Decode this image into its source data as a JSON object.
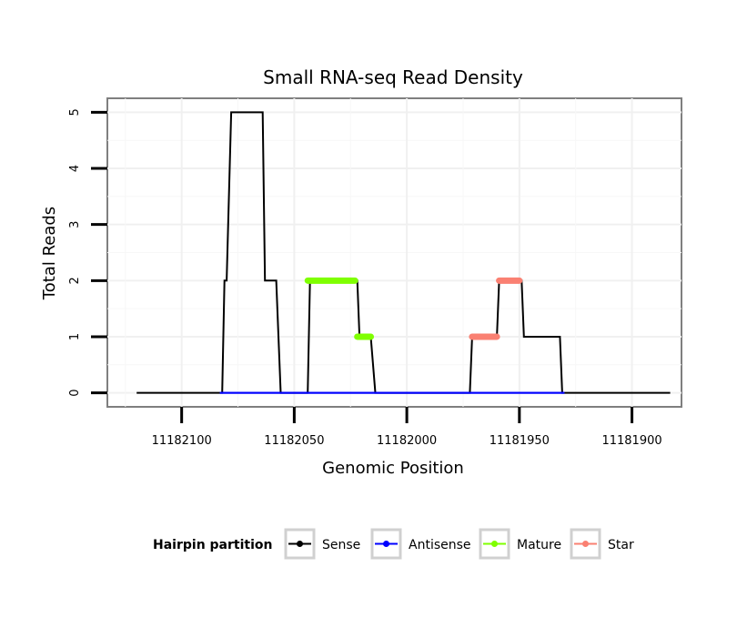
{
  "chart_data": {
    "type": "line",
    "title": "Small RNA-seq Read Density",
    "xlabel": "Genomic Position",
    "ylabel": "Total Reads",
    "x_reversed": true,
    "xlim": [
      11182133,
      11181878
    ],
    "ylim": [
      -0.25,
      5.25
    ],
    "x_ticks": [
      11182100,
      11182050,
      11182000,
      11181950,
      11181900
    ],
    "x_tick_labels": [
      "11182100",
      "11182050",
      "11182000",
      "11181950",
      "11181900"
    ],
    "y_ticks": [
      0,
      1,
      2,
      3,
      4,
      5
    ],
    "y_tick_labels": [
      "0",
      "1",
      "2",
      "3",
      "4",
      "5"
    ],
    "grid": true,
    "legend": {
      "title": "Hairpin partition",
      "position": "bottom",
      "entries": [
        {
          "name": "Sense",
          "color": "#000000"
        },
        {
          "name": "Antisense",
          "color": "#0000ff"
        },
        {
          "name": "Mature",
          "color": "#7fff00"
        },
        {
          "name": "Star",
          "color": "#fa8072"
        }
      ]
    },
    "series": [
      {
        "name": "Sense",
        "color": "#000000",
        "points": [
          [
            11182120,
            0
          ],
          [
            11182082,
            0
          ],
          [
            11182081,
            2
          ],
          [
            11182080,
            2
          ],
          [
            11182078,
            5
          ],
          [
            11182064,
            5
          ],
          [
            11182063,
            2
          ],
          [
            11182058,
            2
          ],
          [
            11182056,
            0
          ],
          [
            11182044,
            0
          ],
          [
            11182043,
            2
          ],
          [
            11182022,
            2
          ],
          [
            11182021,
            1
          ],
          [
            11182016,
            1
          ],
          [
            11182014,
            0
          ],
          [
            11181972,
            0
          ],
          [
            11181971,
            1
          ],
          [
            11181960,
            1
          ],
          [
            11181959,
            2
          ],
          [
            11181949,
            2
          ],
          [
            11181948,
            1
          ],
          [
            11181932,
            1
          ],
          [
            11181931,
            0
          ],
          [
            11181883,
            0
          ]
        ]
      },
      {
        "name": "Antisense",
        "color": "#0000ff",
        "points": [
          [
            11182083,
            0
          ],
          [
            11182055,
            0
          ],
          [
            11181970,
            0
          ],
          [
            11181930,
            0
          ]
        ]
      },
      {
        "name": "Mature",
        "color": "#7fff00",
        "segments": [
          {
            "x": [
              11182044,
              11182023
            ],
            "y": 2
          },
          {
            "x": [
              11182022,
              11182016
            ],
            "y": 1
          }
        ]
      },
      {
        "name": "Star",
        "color": "#fa8072",
        "segments": [
          {
            "x": [
              11181971,
              11181960
            ],
            "y": 1
          },
          {
            "x": [
              11181959,
              11181950
            ],
            "y": 2
          }
        ]
      }
    ]
  }
}
